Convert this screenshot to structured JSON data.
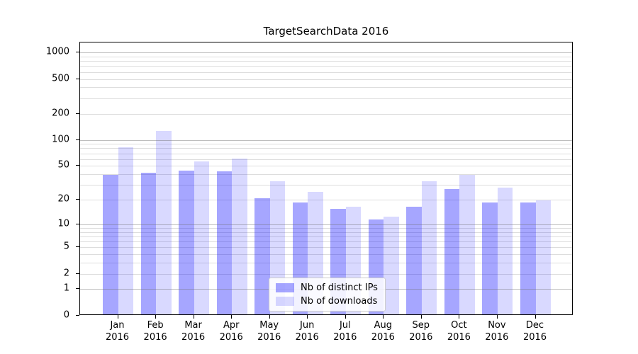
{
  "chart_data": {
    "type": "bar",
    "title": "TargetSearchData 2016",
    "x_axis": {
      "year": "2016",
      "months": [
        "Jan",
        "Feb",
        "Mar",
        "Apr",
        "May",
        "Jun",
        "Jul",
        "Aug",
        "Sep",
        "Oct",
        "Nov",
        "Dec"
      ]
    },
    "y_axis": {
      "scale": "log1p",
      "ticks": [
        0,
        1,
        2,
        5,
        10,
        20,
        50,
        100,
        200,
        500,
        1000
      ],
      "major_gridlines": [
        1,
        10,
        100,
        1000
      ],
      "minor_gridline_decades": [
        1,
        10,
        100
      ],
      "ylim": [
        0,
        1300
      ]
    },
    "grid": true,
    "legend_position": "lower center",
    "series": [
      {
        "name": "Nb of distinct IPs",
        "color": "rgba(0,0,255,0.35)",
        "values": [
          38,
          40,
          43,
          42,
          20,
          18,
          15,
          11,
          16,
          26,
          18,
          18
        ]
      },
      {
        "name": "Nb of downloads",
        "color": "rgba(0,0,255,0.15)",
        "values": [
          79,
          122,
          55,
          59,
          32,
          24,
          16,
          12,
          32,
          38,
          27,
          19
        ]
      }
    ]
  }
}
